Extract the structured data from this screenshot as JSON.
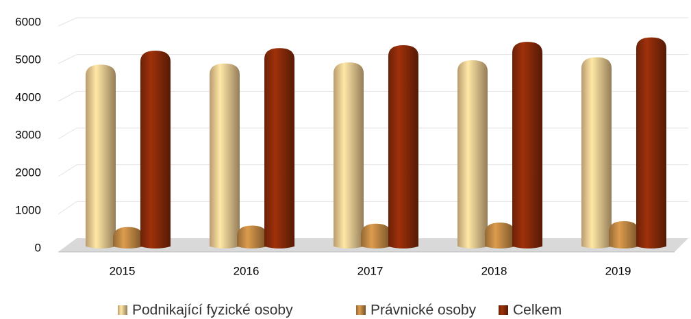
{
  "chart_data": {
    "type": "bar",
    "categories": [
      "2015",
      "2016",
      "2017",
      "2018",
      "2019"
    ],
    "series": [
      {
        "name": "Podnikající fyzické osoby",
        "color": "#f6cf94",
        "values": [
          4800,
          4830,
          4860,
          4920,
          5000
        ]
      },
      {
        "name": "Právnické osoby",
        "color": "#c48b45",
        "values": [
          380,
          420,
          470,
          500,
          540
        ]
      },
      {
        "name": "Celkem",
        "color": "#8e2c09",
        "values": [
          5180,
          5250,
          5330,
          5420,
          5540
        ]
      }
    ],
    "ylim": [
      0,
      6000
    ],
    "yticks": [
      0,
      1000,
      2000,
      3000,
      4000,
      5000,
      6000
    ],
    "grid": true,
    "legend": "bottom"
  }
}
